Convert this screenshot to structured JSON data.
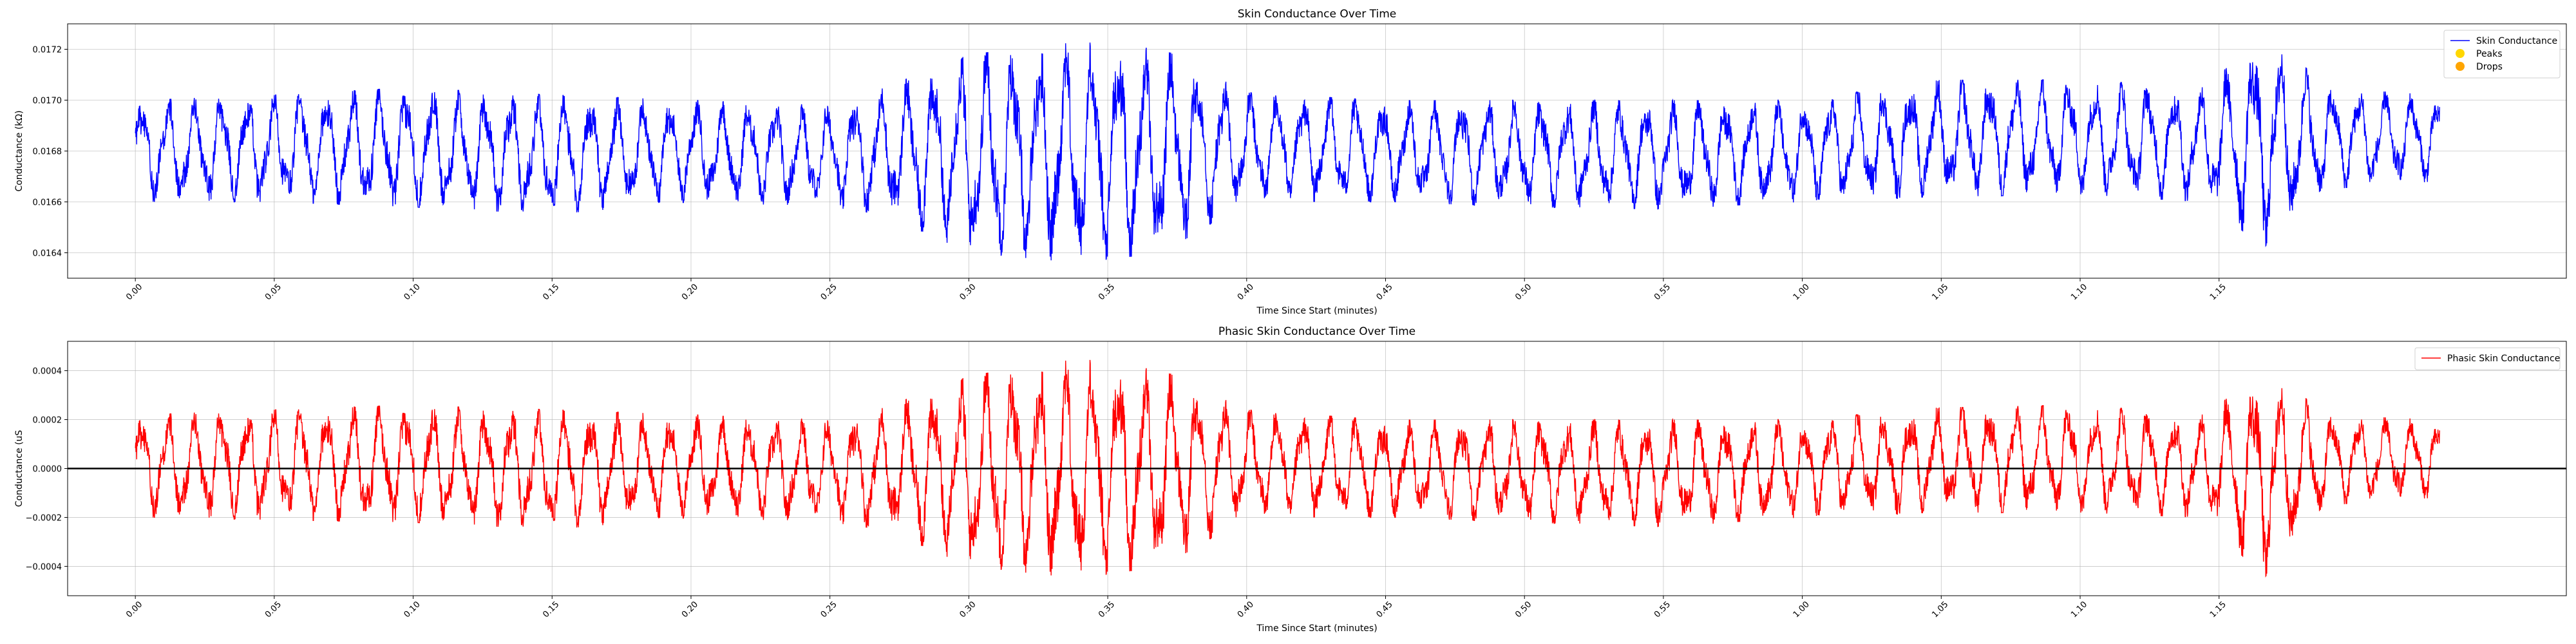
{
  "chart_data": [
    {
      "type": "line",
      "title": "Skin Conductance Over Time",
      "xlabel": "Time Since Start (minutes)",
      "ylabel": "Conductance (kΩ)",
      "xlim": [
        -0.039,
        1.4
      ],
      "ylim": [
        0.0163,
        0.0173
      ],
      "xticks": [
        "0.00",
        "0.05",
        "0.10",
        "0.15",
        "0.20",
        "0.25",
        "0.30",
        "0.35",
        "0.40",
        "0.45",
        "0.50",
        "0.55",
        "1.00",
        "1.05",
        "1.10",
        "1.15"
      ],
      "xtick_values": [
        0.0,
        0.05,
        0.1,
        0.15,
        0.2,
        0.25,
        0.3,
        0.35,
        0.4,
        0.45,
        0.5,
        0.55,
        0.6,
        0.65,
        0.7,
        0.75
      ],
      "xtick_scale": 1.6,
      "yticks": [
        0.0164,
        0.0166,
        0.0168,
        0.017,
        0.0172
      ],
      "ytick_labels": [
        "0.0164",
        "0.0166",
        "0.0168",
        "0.0170",
        "0.0172"
      ],
      "grid": true,
      "legend": "top-right",
      "legend_entries": [
        {
          "label": "Skin Conductance",
          "kind": "line",
          "color": "#0000ff"
        },
        {
          "label": "Peaks",
          "kind": "marker",
          "color": "#ffd700"
        },
        {
          "label": "Drops",
          "kind": "marker",
          "color": "#ffa500"
        }
      ],
      "series": [
        {
          "name": "Skin Conductance",
          "color": "#0000ff",
          "x_start": 0.0,
          "x_end": 1.327,
          "baseline": 0.0168,
          "oscillation_period": 0.0095,
          "envelope": [
            {
              "x": 0.0,
              "min": 0.0166,
              "max": 0.017
            },
            {
              "x": 0.05,
              "min": 0.0166,
              "max": 0.01702
            },
            {
              "x": 0.1,
              "min": 0.01658,
              "max": 0.01705
            },
            {
              "x": 0.15,
              "min": 0.01655,
              "max": 0.01702
            },
            {
              "x": 0.2,
              "min": 0.0166,
              "max": 0.017
            },
            {
              "x": 0.25,
              "min": 0.01658,
              "max": 0.01698
            },
            {
              "x": 0.27,
              "min": 0.01655,
              "max": 0.01705
            },
            {
              "x": 0.3,
              "min": 0.0164,
              "max": 0.01718
            },
            {
              "x": 0.34,
              "min": 0.01636,
              "max": 0.01723
            },
            {
              "x": 0.37,
              "min": 0.0164,
              "max": 0.0172
            },
            {
              "x": 0.4,
              "min": 0.0166,
              "max": 0.01703
            },
            {
              "x": 0.45,
              "min": 0.0166,
              "max": 0.017
            },
            {
              "x": 0.5,
              "min": 0.01658,
              "max": 0.017
            },
            {
              "x": 0.55,
              "min": 0.01657,
              "max": 0.017
            },
            {
              "x": 0.6,
              "min": 0.0166,
              "max": 0.017
            },
            {
              "x": 0.65,
              "min": 0.01662,
              "max": 0.01708
            },
            {
              "x": 0.7,
              "min": 0.01663,
              "max": 0.01708
            },
            {
              "x": 0.745,
              "min": 0.0166,
              "max": 0.01705
            },
            {
              "x": 0.766,
              "min": 0.01642,
              "max": 0.01726
            },
            {
              "x": 0.79,
              "min": 0.01665,
              "max": 0.01705
            },
            {
              "x": 0.827,
              "min": 0.01668,
              "max": 0.01702
            }
          ]
        }
      ]
    },
    {
      "type": "line",
      "title": "Phasic Skin Conductance Over Time",
      "xlabel": "Time Since Start (minutes)",
      "ylabel": "Conductance (uS",
      "xlim": [
        -0.039,
        1.4
      ],
      "ylim": [
        -0.00052,
        0.00052
      ],
      "xticks": [
        "0.00",
        "0.05",
        "0.10",
        "0.15",
        "0.20",
        "0.25",
        "0.30",
        "0.35",
        "0.40",
        "0.45",
        "0.50",
        "0.55",
        "1.00",
        "1.05",
        "1.10",
        "1.15"
      ],
      "xtick_values": [
        0.0,
        0.05,
        0.1,
        0.15,
        0.2,
        0.25,
        0.3,
        0.35,
        0.4,
        0.45,
        0.5,
        0.55,
        0.6,
        0.65,
        0.7,
        0.75
      ],
      "xtick_scale": 1.6,
      "yticks": [
        -0.0004,
        -0.0002,
        0.0,
        0.0002,
        0.0004
      ],
      "ytick_labels": [
        "−0.0004",
        "−0.0002",
        "0.0000",
        "0.0002",
        "0.0004"
      ],
      "hline": 0.0,
      "grid": true,
      "legend": "top-right",
      "legend_entries": [
        {
          "label": "Phasic Skin Conductance",
          "kind": "line",
          "color": "#ff0000"
        }
      ],
      "series": [
        {
          "name": "Phasic Skin Conductance",
          "color": "#ff0000",
          "x_start": 0.0,
          "x_end": 1.327,
          "baseline": 0.0,
          "oscillation_period": 0.0095,
          "envelope": [
            {
              "x": 0.0,
              "min": -0.0002,
              "max": 0.00022
            },
            {
              "x": 0.05,
              "min": -0.00021,
              "max": 0.00024
            },
            {
              "x": 0.1,
              "min": -0.00022,
              "max": 0.00026
            },
            {
              "x": 0.15,
              "min": -0.00025,
              "max": 0.00024
            },
            {
              "x": 0.2,
              "min": -0.0002,
              "max": 0.00022
            },
            {
              "x": 0.25,
              "min": -0.00022,
              "max": 0.0002
            },
            {
              "x": 0.27,
              "min": -0.00025,
              "max": 0.00025
            },
            {
              "x": 0.3,
              "min": -0.0004,
              "max": 0.00038
            },
            {
              "x": 0.34,
              "min": -0.00045,
              "max": 0.00045
            },
            {
              "x": 0.37,
              "min": -0.0004,
              "max": 0.0004
            },
            {
              "x": 0.4,
              "min": -0.0002,
              "max": 0.00024
            },
            {
              "x": 0.45,
              "min": -0.0002,
              "max": 0.0002
            },
            {
              "x": 0.5,
              "min": -0.00022,
              "max": 0.0002
            },
            {
              "x": 0.55,
              "min": -0.00024,
              "max": 0.0002
            },
            {
              "x": 0.6,
              "min": -0.0002,
              "max": 0.0002
            },
            {
              "x": 0.65,
              "min": -0.00018,
              "max": 0.00025
            },
            {
              "x": 0.7,
              "min": -0.00018,
              "max": 0.00026
            },
            {
              "x": 0.745,
              "min": -0.0002,
              "max": 0.00022
            },
            {
              "x": 0.766,
              "min": -0.00045,
              "max": 0.0004
            },
            {
              "x": 0.79,
              "min": -0.00015,
              "max": 0.00022
            },
            {
              "x": 0.827,
              "min": -0.00012,
              "max": 0.0002
            }
          ]
        }
      ]
    }
  ]
}
